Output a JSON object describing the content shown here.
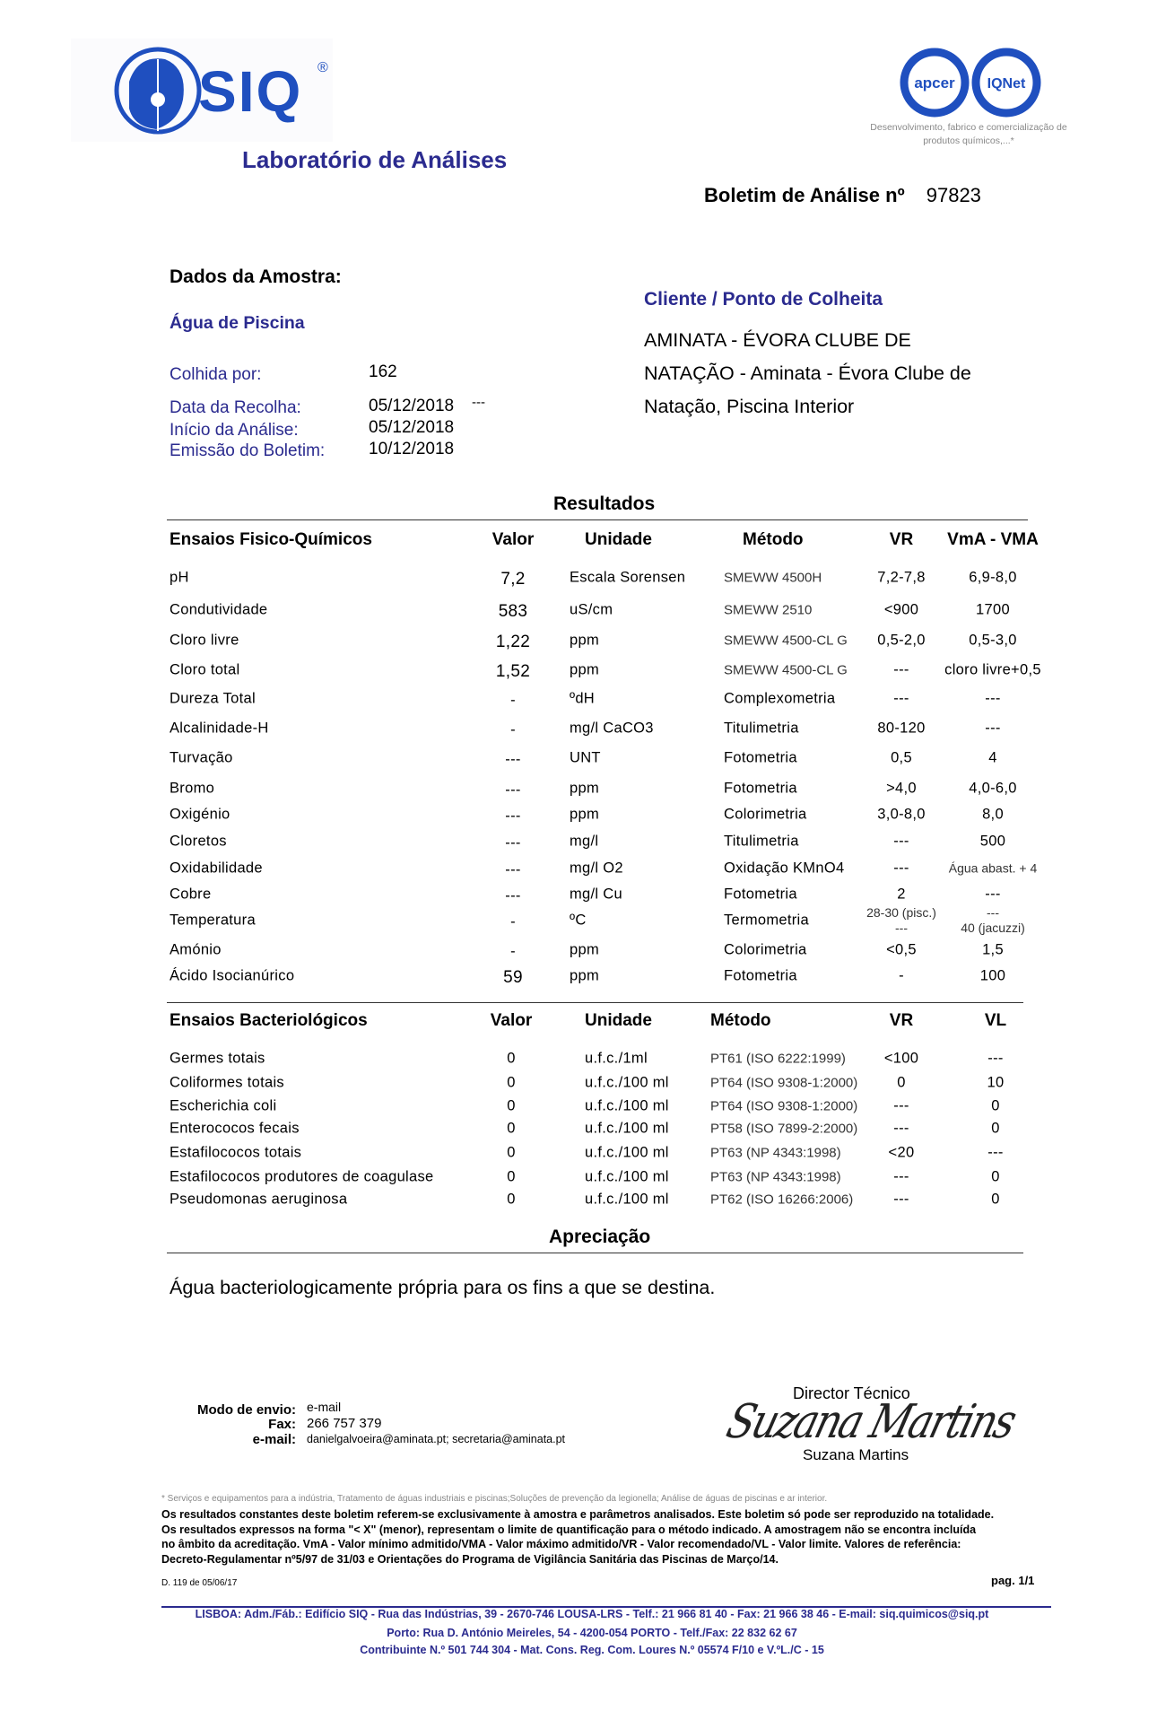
{
  "header": {
    "logo_text": "SIQ",
    "logo_registered": "®",
    "cert_logos": [
      "apcer",
      "IQNet"
    ],
    "cert_caption_line1": "Desenvolvimento, fabrico e comercialização de",
    "cert_caption_line2": "produtos químicos,...*",
    "lab_title": "Laboratório de Análises",
    "bulletin_label": "Boletim de Análise nº",
    "bulletin_number": "97823",
    "brand_color": "#2b2b8f"
  },
  "sample": {
    "section_title": "Dados da Amostra:",
    "type": "Água de Piscina",
    "collected_by_label": "Colhida por:",
    "collected_by": "162",
    "collection_date_label": "Data da Recolha:",
    "collection_date": "05/12/2018",
    "collection_time": "---",
    "analysis_start_label": "Início da Análise:",
    "analysis_start": "05/12/2018",
    "issue_date_label": "Emissão do Boletim:",
    "issue_date": "10/12/2018"
  },
  "client": {
    "section_title": "Cliente / Ponto de Colheita",
    "lines": [
      "AMINATA - ÉVORA CLUBE DE",
      "NATAÇÃO - Aminata - Évora Clube de",
      "Natação, Piscina Interior"
    ]
  },
  "results": {
    "title": "Resultados",
    "physchem": {
      "headers": [
        "Ensaios Fisico-Químicos",
        "Valor",
        "Unidade",
        "Método",
        "VR",
        "VmA - VMA"
      ],
      "rows": [
        [
          "pH",
          "7,2",
          "Escala Sorensen",
          "SMEWW 4500H",
          "7,2-7,8",
          "6,9-8,0"
        ],
        [
          "Condutividade",
          "583",
          "uS/cm",
          "SMEWW 2510",
          "<900",
          "1700"
        ],
        [
          "Cloro livre",
          "1,22",
          "ppm",
          "SMEWW 4500-CL G",
          "0,5-2,0",
          "0,5-3,0"
        ],
        [
          "Cloro total",
          "1,52",
          "ppm",
          "SMEWW 4500-CL G",
          "---",
          "cloro livre+0,5"
        ],
        [
          "Dureza Total",
          "-",
          "ºdH",
          "Complexometria",
          "---",
          "---"
        ],
        [
          "Alcalinidade-H",
          "-",
          "mg/l CaCO3",
          "Titulimetria",
          "80-120",
          "---"
        ],
        [
          "Turvação",
          "---",
          "UNT",
          "Fotometria",
          "0,5",
          "4"
        ],
        [
          "Bromo",
          "---",
          "ppm",
          "Fotometria",
          ">4,0",
          "4,0-6,0"
        ],
        [
          "Oxigénio",
          "---",
          "ppm",
          "Colorimetria",
          "3,0-8,0",
          "8,0"
        ],
        [
          "Cloretos",
          "---",
          "mg/l",
          "Titulimetria",
          "---",
          "500"
        ],
        [
          "Oxidabilidade",
          "---",
          "mg/l O2",
          "Oxidação KMnO4",
          "---",
          "Água abast. + 4"
        ],
        [
          "Cobre",
          "---",
          "mg/l Cu",
          "Fotometria",
          "2",
          "---"
        ],
        [
          "Temperatura",
          "-",
          "ºC",
          "Termometria",
          "28-30 (pisc.)\n---",
          "---\n40 (jacuzzi)"
        ],
        [
          "Amónio",
          "-",
          "ppm",
          "Colorimetria",
          "<0,5",
          "1,5"
        ],
        [
          "Ácido Isocianúrico",
          "59",
          "ppm",
          "Fotometria",
          "-",
          "100"
        ]
      ]
    },
    "bacterio": {
      "headers": [
        "Ensaios Bacteriológicos",
        "Valor",
        "Unidade",
        "Método",
        "VR",
        "VL"
      ],
      "rows": [
        [
          "Germes totais",
          "0",
          "u.f.c./1ml",
          "PT61 (ISO 6222:1999)",
          "<100",
          "---"
        ],
        [
          "Coliformes totais",
          "0",
          "u.f.c./100 ml",
          "PT64 (ISO 9308-1:2000)",
          "0",
          "10"
        ],
        [
          "Escherichia coli",
          "0",
          "u.f.c./100 ml",
          "PT64 (ISO 9308-1:2000)",
          "---",
          "0"
        ],
        [
          "Enterococos fecais",
          "0",
          "u.f.c./100 ml",
          "PT58 (ISO 7899-2:2000)",
          "---",
          "0"
        ],
        [
          "Estafilococos totais",
          "0",
          "u.f.c./100 ml",
          "PT63 (NP 4343:1998)",
          "<20",
          "---"
        ],
        [
          "Estafilococos produtores de coagulase",
          "0",
          "u.f.c./100 ml",
          "PT63 (NP 4343:1998)",
          "---",
          "0"
        ],
        [
          "Pseudomonas aeruginosa",
          "0",
          "u.f.c./100 ml",
          "PT62 (ISO 16266:2006)",
          "---",
          "0"
        ]
      ]
    }
  },
  "appraisal": {
    "title": "Apreciação",
    "text": "Água bacteriologicamente própria para os fins a que se destina."
  },
  "sending": {
    "mode_label": "Modo de envio:",
    "mode": "e-mail",
    "fax_label": "Fax:",
    "fax": "266 757 379",
    "email_label": "e-mail:",
    "email": "danielgalvoeira@aminata.pt; secretaria@aminata.pt"
  },
  "signature": {
    "role": "Director Técnico",
    "name": "Suzana Martins",
    "signature_text": "Suzana Martins"
  },
  "notes": {
    "asterisk_note": "* Serviços e equipamentos para a indústria, Tratamento de águas industriais e piscinas;Soluções de prevenção da legionella; Análise de águas de piscinas e ar interior.",
    "lines": [
      "Os resultados constantes deste boletim referem-se exclusivamente à amostra e parâmetros analisados. Este boletim só pode ser reproduzido na totalidade.",
      "Os resultados expressos na forma \"< X\" (menor), representam o limite de quantificação para o método indicado.  A amostragem não se encontra incluída",
      "no âmbito da acreditação. VmA - Valor mínimo admitido/VMA - Valor máximo admitido/VR - Valor recomendado/VL - Valor limite. Valores de referência:",
      "Decreto-Regulamentar nº5/97 de 31/03 e Orientações do Programa de Vigilância Sanitária das Piscinas de Março/14."
    ],
    "doc_ref": "D. 119 de 05/06/17",
    "page": "pag. 1/1"
  },
  "footer": {
    "lines": [
      "LISBOA: Adm./Fáb.: Edifício SIQ - Rua das Indústrias, 39 -  2670-746 LOUSA-LRS - Telf.: 21 966 81 40 - Fax: 21 966 38 46 - E-mail: siq.quimicos@siq.pt",
      "Porto: Rua D. António Meireles, 54 - 4200-054 PORTO - Telf./Fax: 22 832 62 67",
      "Contribuinte N.º 501 744 304 - Mat. Cons. Reg. Com. Loures N.º 05574 F/10 e V.ºL./C - 15"
    ]
  }
}
